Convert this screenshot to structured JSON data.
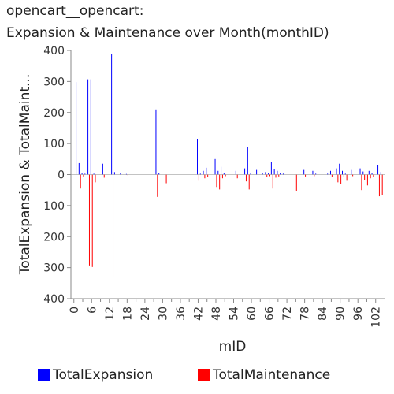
{
  "title_line1": "opencart__opencart:",
  "title_line2": "Expansion & Maintenance over Month(monthID)",
  "colors": {
    "expansion": "#0000ff",
    "maintenance": "#ff0000",
    "axis": "#888888"
  },
  "chart_data": {
    "type": "bar",
    "xlabel": "mID",
    "ylabel": "TotalExpansion & TotalMaint...",
    "xlim": [
      -1,
      105
    ],
    "ylim": [
      -400,
      400
    ],
    "yticks": [
      400,
      300,
      200,
      100,
      0,
      100,
      200,
      300,
      400
    ],
    "xticks": [
      0,
      6,
      12,
      18,
      24,
      30,
      36,
      42,
      48,
      54,
      60,
      66,
      72,
      78,
      84,
      90,
      96,
      102
    ],
    "legend_position": "bottom",
    "grid": false,
    "series": [
      {
        "name": "TotalExpansion",
        "points": [
          [
            1,
            298
          ],
          [
            2,
            37
          ],
          [
            3,
            5
          ],
          [
            4,
            3
          ],
          [
            5,
            307
          ],
          [
            6,
            307
          ],
          [
            7,
            3
          ],
          [
            10,
            35
          ],
          [
            13,
            390
          ],
          [
            14,
            8
          ],
          [
            16,
            6
          ],
          [
            18,
            2
          ],
          [
            28,
            210
          ],
          [
            29,
            4
          ],
          [
            42,
            115
          ],
          [
            43,
            3
          ],
          [
            44,
            12
          ],
          [
            45,
            22
          ],
          [
            48,
            50
          ],
          [
            49,
            12
          ],
          [
            50,
            25
          ],
          [
            51,
            5
          ],
          [
            55,
            12
          ],
          [
            58,
            20
          ],
          [
            59,
            90
          ],
          [
            60,
            5
          ],
          [
            62,
            15
          ],
          [
            64,
            5
          ],
          [
            65,
            8
          ],
          [
            66,
            5
          ],
          [
            67,
            40
          ],
          [
            68,
            18
          ],
          [
            69,
            12
          ],
          [
            70,
            5
          ],
          [
            71,
            3
          ],
          [
            78,
            15
          ],
          [
            81,
            12
          ],
          [
            82,
            3
          ],
          [
            86,
            3
          ],
          [
            87,
            12
          ],
          [
            89,
            20
          ],
          [
            90,
            35
          ],
          [
            91,
            12
          ],
          [
            92,
            3
          ],
          [
            94,
            15
          ],
          [
            97,
            20
          ],
          [
            98,
            10
          ],
          [
            100,
            12
          ],
          [
            101,
            5
          ],
          [
            103,
            30
          ],
          [
            104,
            8
          ]
        ]
      },
      {
        "name": "TotalMaintenance",
        "points": [
          [
            2,
            -45
          ],
          [
            3,
            -6
          ],
          [
            5,
            -293
          ],
          [
            6,
            -298
          ],
          [
            7,
            -25
          ],
          [
            10,
            -10
          ],
          [
            13,
            -328
          ],
          [
            18,
            -2
          ],
          [
            28,
            -72
          ],
          [
            31,
            -28
          ],
          [
            42,
            -20
          ],
          [
            44,
            -12
          ],
          [
            45,
            -8
          ],
          [
            48,
            -40
          ],
          [
            49,
            -48
          ],
          [
            50,
            -12
          ],
          [
            51,
            -5
          ],
          [
            55,
            -12
          ],
          [
            58,
            -22
          ],
          [
            59,
            -48
          ],
          [
            62,
            -12
          ],
          [
            65,
            -8
          ],
          [
            66,
            -5
          ],
          [
            67,
            -45
          ],
          [
            68,
            -10
          ],
          [
            69,
            -6
          ],
          [
            75,
            -52
          ],
          [
            78,
            -6
          ],
          [
            81,
            -5
          ],
          [
            87,
            -8
          ],
          [
            89,
            -25
          ],
          [
            90,
            -30
          ],
          [
            91,
            -8
          ],
          [
            92,
            -20
          ],
          [
            94,
            -5
          ],
          [
            97,
            -50
          ],
          [
            98,
            -18
          ],
          [
            99,
            -35
          ],
          [
            100,
            -12
          ],
          [
            101,
            -8
          ],
          [
            103,
            -70
          ],
          [
            104,
            -65
          ]
        ]
      }
    ]
  }
}
